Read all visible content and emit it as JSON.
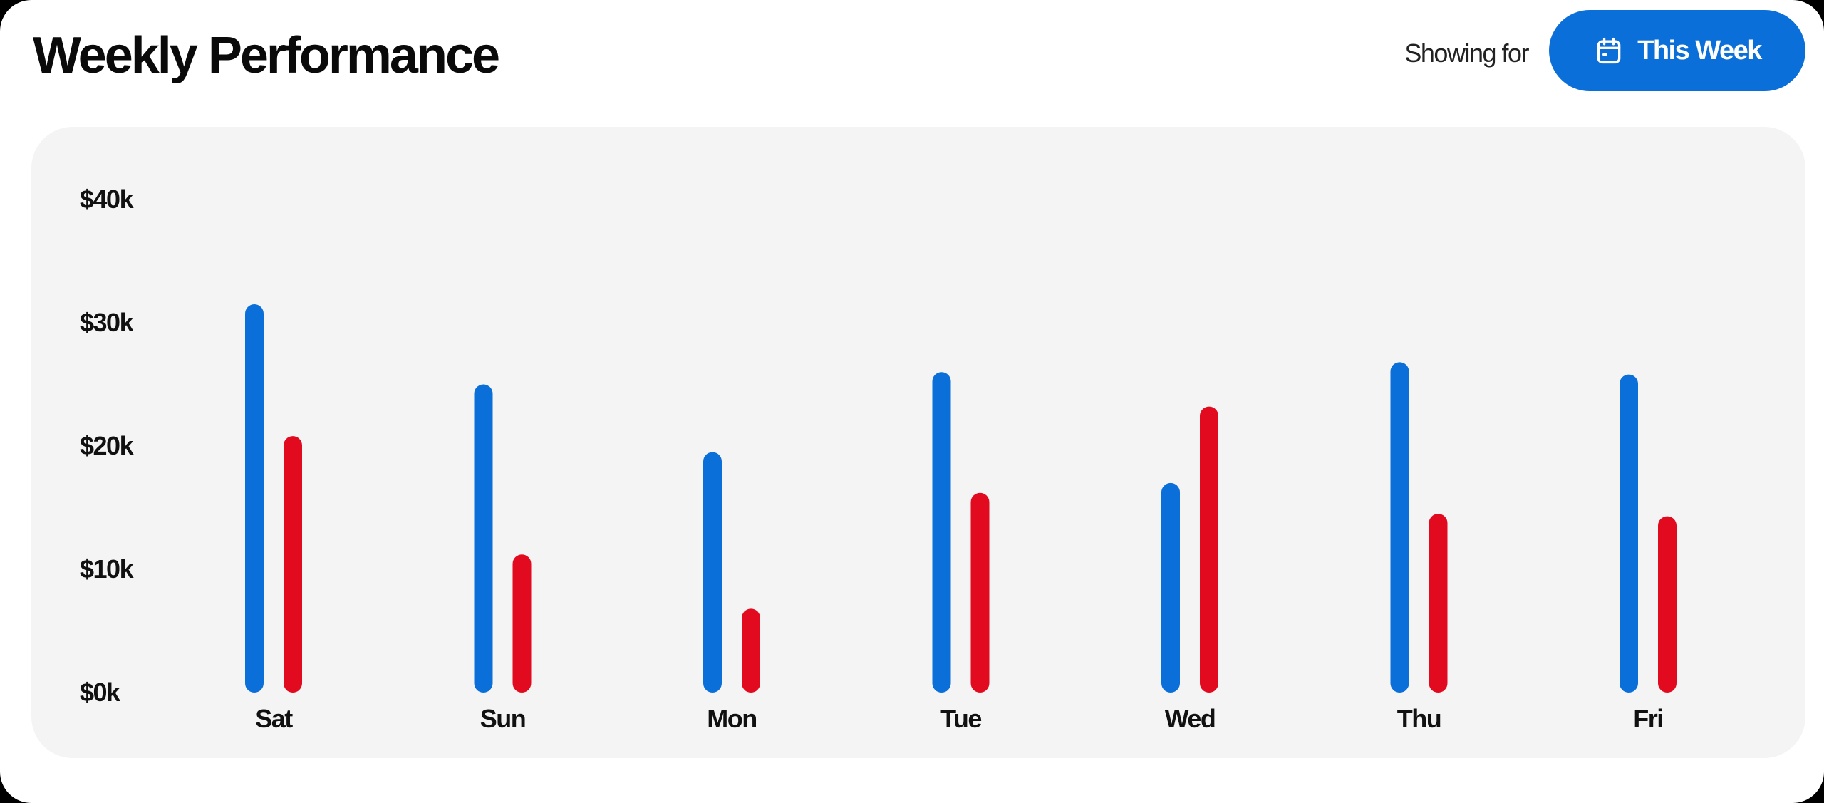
{
  "header": {
    "title": "Weekly Performance",
    "showing_label": "Showing for",
    "period_button_label": "This Week",
    "period_button_icon": "calendar-icon"
  },
  "colors": {
    "accent": "#0a6fd8",
    "series_1": "#0a6fd8",
    "series_2": "#e20a1e",
    "panel_background": "#f4f4f4"
  },
  "chart_data": {
    "type": "bar",
    "title": "Weekly Performance",
    "xlabel": "",
    "ylabel": "",
    "categories": [
      "Sat",
      "Sun",
      "Mon",
      "Tue",
      "Wed",
      "Thu",
      "Fri"
    ],
    "series": [
      {
        "values": [
          31.5,
          25,
          19.5,
          26,
          17,
          26.8,
          25.8
        ]
      },
      {
        "values": [
          20.8,
          11.2,
          6.8,
          16.2,
          23.2,
          14.5,
          14.3
        ]
      }
    ],
    "ylim": [
      0,
      40
    ],
    "yticks": [
      "$0k",
      "$10k",
      "$20k",
      "$30k",
      "$40k"
    ],
    "grid": false,
    "legend": "none"
  }
}
